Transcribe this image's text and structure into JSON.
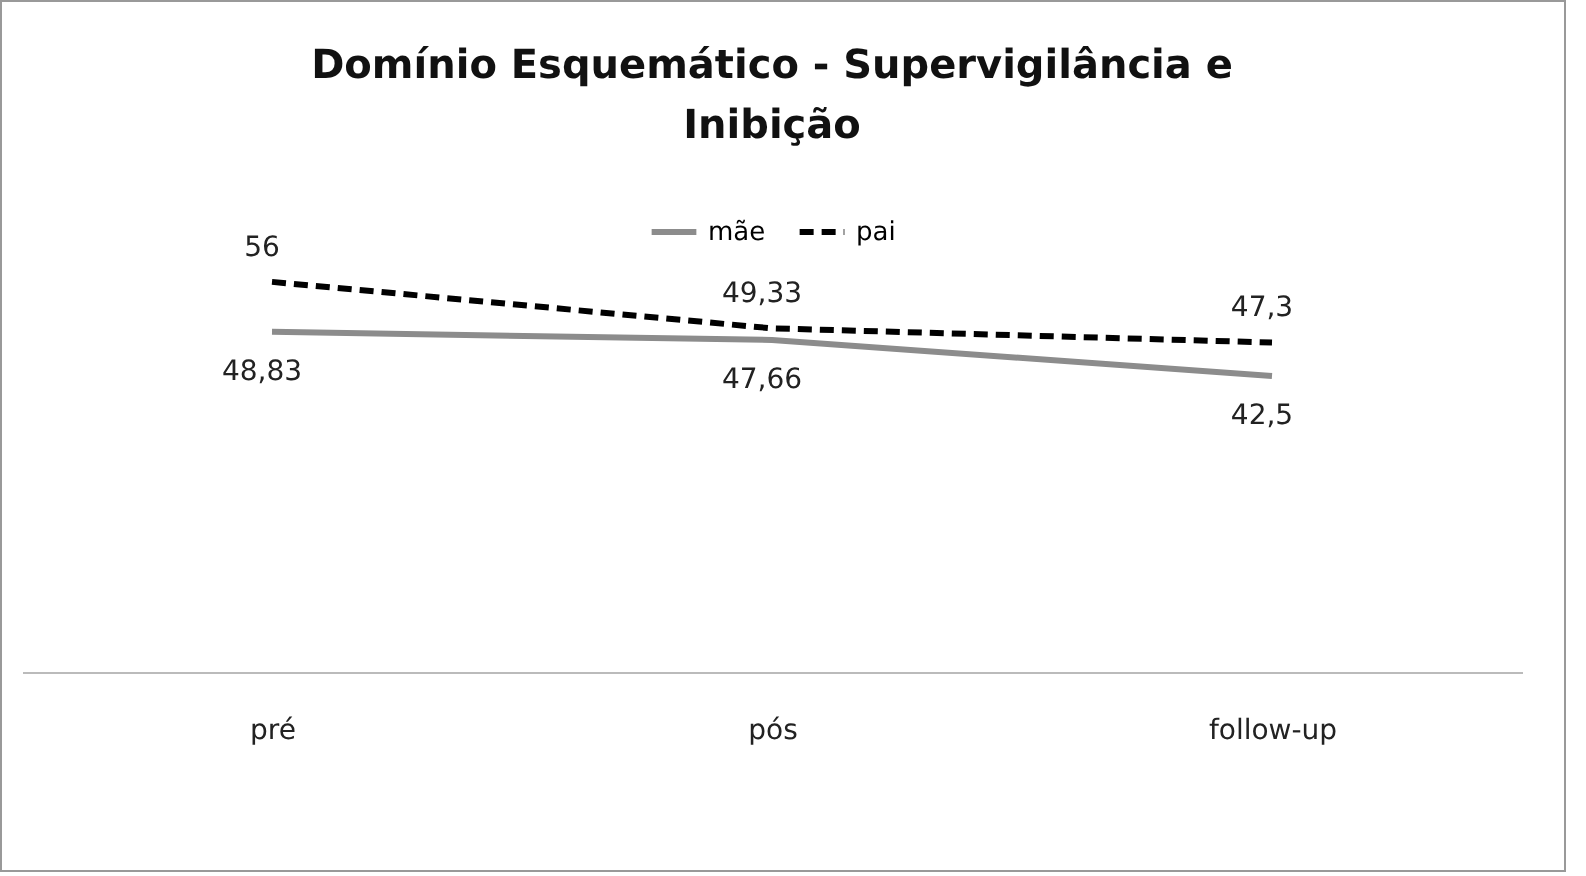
{
  "chart_data": {
    "type": "line",
    "title": "Domínio Esquemático - Supervigilância e\nInibição",
    "categories": [
      "pré",
      "pós",
      "follow-up"
    ],
    "series": [
      {
        "name": "mãe",
        "color": "#8c8c8c",
        "line_style": "solid",
        "values": [
          48.83,
          47.66,
          42.5
        ],
        "value_labels": [
          "48,83",
          "47,66",
          "42,5"
        ]
      },
      {
        "name": "pai",
        "color": "#000000",
        "line_style": "dashed",
        "values": [
          56,
          49.33,
          47.3
        ],
        "value_labels": [
          "56",
          "49,33",
          "47,3"
        ]
      }
    ],
    "legend": "top",
    "grid": false,
    "marker": "none"
  }
}
